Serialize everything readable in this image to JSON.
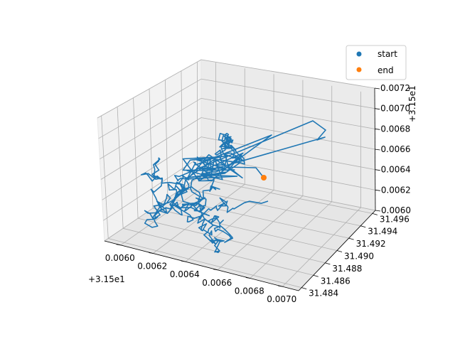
{
  "chart_data": {
    "type": "line",
    "projection": "3d",
    "grid": true,
    "legend_placement": "top-right",
    "x_axis": {
      "ticks": [
        "0.0060",
        "0.0062",
        "0.0064",
        "0.0066",
        "0.0068",
        "0.0070"
      ],
      "offset_label": "+3.15e1",
      "range": [
        31.5059,
        31.5071
      ]
    },
    "y_axis": {
      "ticks": [
        "31.484",
        "31.486",
        "31.488",
        "31.490",
        "31.492",
        "31.494",
        "31.496"
      ],
      "range": [
        31.4835,
        31.4965
      ]
    },
    "z_axis": {
      "ticks": [
        "0.0060",
        "0.0062",
        "0.0064",
        "0.0066",
        "0.0068",
        "0.0070",
        "0.0072"
      ],
      "offset_label": "+3.15e1",
      "range": [
        31.506,
        31.5072
      ]
    },
    "series": [
      {
        "kind": "trajectory",
        "color": "#1f77b4"
      },
      {
        "name": "start",
        "kind": "marker",
        "color": "#1f77b4"
      },
      {
        "name": "end",
        "kind": "marker",
        "color": "#ff7f0e",
        "point": [
          31.5068,
          31.4905,
          31.5065
        ]
      }
    ]
  }
}
